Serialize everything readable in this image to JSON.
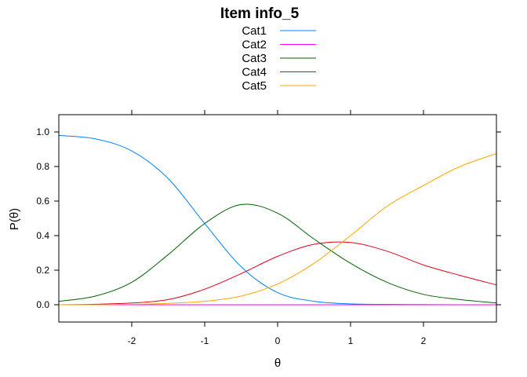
{
  "chart_data": {
    "type": "line",
    "title": "Item info_5",
    "xlabel": "θ",
    "ylabel": "P(θ)",
    "xlim": [
      -3,
      3
    ],
    "ylim": [
      -0.1,
      1.1
    ],
    "x_ticks": [
      -2,
      -1,
      0,
      1,
      2
    ],
    "y_ticks": [
      0.0,
      0.2,
      0.4,
      0.6,
      0.8,
      1.0
    ],
    "x_tick_labels": [
      "-2",
      "-1",
      "0",
      "1",
      "2"
    ],
    "y_tick_labels": [
      "0.0",
      "0.2",
      "0.4",
      "0.6",
      "0.8",
      "1.0"
    ],
    "legend_position": "top-center",
    "x": [
      -3.0,
      -2.5,
      -2.0,
      -1.5,
      -1.0,
      -0.5,
      0.0,
      0.5,
      1.0,
      1.5,
      2.0,
      2.5,
      3.0
    ],
    "series": [
      {
        "name": "Cat1",
        "color": "#0080ff",
        "values": [
          0.98,
          0.96,
          0.89,
          0.73,
          0.47,
          0.22,
          0.07,
          0.02,
          0.005,
          0.002,
          0.001,
          0.0,
          0.0
        ]
      },
      {
        "name": "Cat2",
        "color": "#ff00ff",
        "values": [
          0.0,
          0.0,
          0.0,
          0.0,
          0.0,
          0.0,
          0.0,
          0.0,
          0.0,
          0.0,
          0.0,
          0.0,
          0.0
        ]
      },
      {
        "name": "Cat3",
        "color": "#006400",
        "values": [
          0.02,
          0.05,
          0.13,
          0.29,
          0.47,
          0.58,
          0.53,
          0.38,
          0.24,
          0.13,
          0.06,
          0.03,
          0.01
        ]
      },
      {
        "name": "Cat4",
        "color": "#e0001a",
        "values": [
          0.0,
          0.003,
          0.01,
          0.03,
          0.09,
          0.18,
          0.28,
          0.35,
          0.36,
          0.31,
          0.23,
          0.17,
          0.115
        ]
      },
      {
        "name": "Cat5",
        "color": "#ffa500",
        "values": [
          0.0,
          0.0,
          0.002,
          0.008,
          0.02,
          0.05,
          0.12,
          0.24,
          0.4,
          0.57,
          0.69,
          0.8,
          0.875
        ]
      }
    ]
  }
}
